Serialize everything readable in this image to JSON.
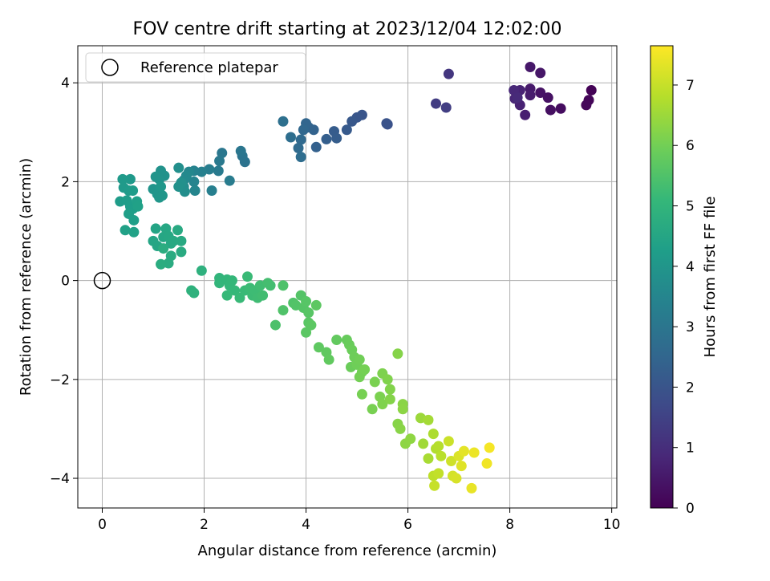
{
  "chart_data": {
    "type": "scatter",
    "title": "FOV centre drift starting at 2023/12/04 12:02:00",
    "xlabel": "Angular distance from reference (arcmin)",
    "ylabel": "Rotation from reference (arcmin)",
    "xlim": [
      -0.48,
      10.1
    ],
    "ylim": [
      -4.6,
      4.75
    ],
    "xticks": [
      0,
      2,
      4,
      6,
      8,
      10
    ],
    "yticks": [
      -4,
      -2,
      0,
      2,
      4
    ],
    "xtick_labels": [
      "0",
      "2",
      "4",
      "6",
      "8",
      "10"
    ],
    "ytick_labels": [
      "−4",
      "−2",
      "0",
      "2",
      "4"
    ],
    "grid": true,
    "legend": {
      "position": "top-left",
      "entries": [
        {
          "label": "Reference platepar",
          "marker": "open-circle"
        }
      ]
    },
    "reference_point": {
      "x": 0,
      "y": 0
    },
    "colorbar": {
      "label": "Hours from first FF file",
      "range": [
        0,
        7.65
      ],
      "ticks": [
        0,
        1,
        2,
        3,
        4,
        5,
        6,
        7
      ],
      "tick_labels": [
        "0",
        "1",
        "2",
        "3",
        "4",
        "5",
        "6",
        "7"
      ],
      "colormap": "viridis",
      "stops": [
        "#440154",
        "#482878",
        "#3e4a89",
        "#31688e",
        "#26828e",
        "#1f9e89",
        "#35b779",
        "#6ece58",
        "#b5de2b",
        "#fde725"
      ]
    },
    "points": [
      {
        "x": 9.6,
        "y": 3.85,
        "h": 0.05
      },
      {
        "x": 9.55,
        "y": 3.65,
        "h": 0.1
      },
      {
        "x": 9.5,
        "y": 3.55,
        "h": 0.15
      },
      {
        "x": 9.0,
        "y": 3.48,
        "h": 0.25
      },
      {
        "x": 8.8,
        "y": 3.45,
        "h": 0.3
      },
      {
        "x": 8.75,
        "y": 3.7,
        "h": 0.35
      },
      {
        "x": 8.6,
        "y": 3.8,
        "h": 0.4
      },
      {
        "x": 8.6,
        "y": 4.2,
        "h": 0.45
      },
      {
        "x": 8.4,
        "y": 4.32,
        "h": 0.5
      },
      {
        "x": 8.4,
        "y": 3.88,
        "h": 0.55
      },
      {
        "x": 8.4,
        "y": 3.75,
        "h": 0.6
      },
      {
        "x": 8.3,
        "y": 3.35,
        "h": 0.65
      },
      {
        "x": 8.2,
        "y": 3.55,
        "h": 0.7
      },
      {
        "x": 8.2,
        "y": 3.85,
        "h": 0.75
      },
      {
        "x": 8.1,
        "y": 3.68,
        "h": 0.8
      },
      {
        "x": 8.08,
        "y": 3.85,
        "h": 0.85
      },
      {
        "x": 8.15,
        "y": 3.7,
        "h": 0.9
      },
      {
        "x": 6.8,
        "y": 4.18,
        "h": 1.2
      },
      {
        "x": 6.55,
        "y": 3.58,
        "h": 1.35
      },
      {
        "x": 6.75,
        "y": 3.5,
        "h": 1.4
      },
      {
        "x": 5.6,
        "y": 3.16,
        "h": 1.9
      },
      {
        "x": 5.58,
        "y": 3.18,
        "h": 1.95
      },
      {
        "x": 5.1,
        "y": 3.35,
        "h": 2.0
      },
      {
        "x": 5.0,
        "y": 3.3,
        "h": 2.05
      },
      {
        "x": 4.9,
        "y": 3.22,
        "h": 2.1
      },
      {
        "x": 4.8,
        "y": 3.05,
        "h": 2.15
      },
      {
        "x": 4.55,
        "y": 3.02,
        "h": 2.2
      },
      {
        "x": 4.6,
        "y": 2.88,
        "h": 2.25
      },
      {
        "x": 4.4,
        "y": 2.86,
        "h": 2.3
      },
      {
        "x": 4.2,
        "y": 2.7,
        "h": 2.35
      },
      {
        "x": 4.15,
        "y": 3.05,
        "h": 2.4
      },
      {
        "x": 4.05,
        "y": 3.1,
        "h": 2.45
      },
      {
        "x": 4.0,
        "y": 3.18,
        "h": 2.5
      },
      {
        "x": 3.95,
        "y": 3.05,
        "h": 2.55
      },
      {
        "x": 3.9,
        "y": 2.85,
        "h": 2.6
      },
      {
        "x": 3.85,
        "y": 2.68,
        "h": 2.65
      },
      {
        "x": 3.9,
        "y": 2.5,
        "h": 2.7
      },
      {
        "x": 3.7,
        "y": 2.9,
        "h": 2.75
      },
      {
        "x": 3.55,
        "y": 3.22,
        "h": 2.8
      },
      {
        "x": 2.8,
        "y": 2.4,
        "h": 2.9
      },
      {
        "x": 2.75,
        "y": 2.52,
        "h": 2.95
      },
      {
        "x": 2.72,
        "y": 2.62,
        "h": 3.0
      },
      {
        "x": 2.35,
        "y": 2.58,
        "h": 3.05
      },
      {
        "x": 2.3,
        "y": 2.42,
        "h": 3.1
      },
      {
        "x": 2.28,
        "y": 2.22,
        "h": 3.15
      },
      {
        "x": 2.5,
        "y": 2.02,
        "h": 3.2
      },
      {
        "x": 2.1,
        "y": 2.25,
        "h": 3.25
      },
      {
        "x": 2.15,
        "y": 1.82,
        "h": 3.3
      },
      {
        "x": 1.95,
        "y": 2.2,
        "h": 3.35
      },
      {
        "x": 1.8,
        "y": 2.22,
        "h": 3.4
      },
      {
        "x": 1.8,
        "y": 2.0,
        "h": 3.45
      },
      {
        "x": 1.82,
        "y": 1.82,
        "h": 3.5
      },
      {
        "x": 1.7,
        "y": 2.2,
        "h": 3.55
      },
      {
        "x": 1.65,
        "y": 2.12,
        "h": 3.6
      },
      {
        "x": 1.6,
        "y": 2.03,
        "h": 3.65
      },
      {
        "x": 1.6,
        "y": 1.9,
        "h": 3.7
      },
      {
        "x": 1.62,
        "y": 1.8,
        "h": 3.75
      },
      {
        "x": 1.5,
        "y": 2.28,
        "h": 3.8
      },
      {
        "x": 1.55,
        "y": 1.98,
        "h": 3.82
      },
      {
        "x": 1.5,
        "y": 1.9,
        "h": 3.85
      },
      {
        "x": 1.22,
        "y": 2.12,
        "h": 3.88
      },
      {
        "x": 1.15,
        "y": 2.22,
        "h": 3.9
      },
      {
        "x": 1.12,
        "y": 2.05,
        "h": 3.92
      },
      {
        "x": 1.05,
        "y": 2.1,
        "h": 3.94
      },
      {
        "x": 1.0,
        "y": 1.85,
        "h": 3.96
      },
      {
        "x": 1.08,
        "y": 1.75,
        "h": 3.98
      },
      {
        "x": 1.12,
        "y": 1.68,
        "h": 4.0
      },
      {
        "x": 1.18,
        "y": 1.72,
        "h": 4.02
      },
      {
        "x": 1.15,
        "y": 1.9,
        "h": 4.04
      },
      {
        "x": 0.55,
        "y": 2.05,
        "h": 4.1
      },
      {
        "x": 0.4,
        "y": 2.05,
        "h": 4.12
      },
      {
        "x": 0.42,
        "y": 1.88,
        "h": 4.14
      },
      {
        "x": 0.52,
        "y": 1.82,
        "h": 4.16
      },
      {
        "x": 0.6,
        "y": 1.82,
        "h": 4.18
      },
      {
        "x": 0.35,
        "y": 1.6,
        "h": 4.2
      },
      {
        "x": 0.48,
        "y": 1.62,
        "h": 4.22
      },
      {
        "x": 0.55,
        "y": 1.5,
        "h": 4.24
      },
      {
        "x": 0.6,
        "y": 1.45,
        "h": 4.26
      },
      {
        "x": 0.52,
        "y": 1.35,
        "h": 4.28
      },
      {
        "x": 0.62,
        "y": 1.22,
        "h": 4.3
      },
      {
        "x": 0.68,
        "y": 1.6,
        "h": 4.32
      },
      {
        "x": 0.7,
        "y": 1.5,
        "h": 4.34
      },
      {
        "x": 0.45,
        "y": 1.02,
        "h": 4.36
      },
      {
        "x": 0.62,
        "y": 0.98,
        "h": 4.38
      },
      {
        "x": 1.05,
        "y": 1.05,
        "h": 4.45
      },
      {
        "x": 1.0,
        "y": 0.8,
        "h": 4.48
      },
      {
        "x": 1.08,
        "y": 0.7,
        "h": 4.5
      },
      {
        "x": 1.2,
        "y": 0.88,
        "h": 4.52
      },
      {
        "x": 1.25,
        "y": 1.05,
        "h": 4.54
      },
      {
        "x": 1.3,
        "y": 0.9,
        "h": 4.56
      },
      {
        "x": 1.35,
        "y": 0.75,
        "h": 4.58
      },
      {
        "x": 1.4,
        "y": 0.8,
        "h": 4.6
      },
      {
        "x": 1.48,
        "y": 1.02,
        "h": 4.62
      },
      {
        "x": 1.55,
        "y": 0.8,
        "h": 4.64
      },
      {
        "x": 1.55,
        "y": 0.58,
        "h": 4.66
      },
      {
        "x": 1.35,
        "y": 0.5,
        "h": 4.68
      },
      {
        "x": 1.3,
        "y": 0.35,
        "h": 4.7
      },
      {
        "x": 1.15,
        "y": 0.33,
        "h": 4.72
      },
      {
        "x": 1.2,
        "y": 0.65,
        "h": 4.74
      },
      {
        "x": 1.95,
        "y": 0.2,
        "h": 4.85
      },
      {
        "x": 1.75,
        "y": -0.2,
        "h": 4.88
      },
      {
        "x": 1.8,
        "y": -0.25,
        "h": 4.9
      },
      {
        "x": 2.3,
        "y": 0.05,
        "h": 5.0
      },
      {
        "x": 2.3,
        "y": -0.05,
        "h": 5.02
      },
      {
        "x": 2.45,
        "y": 0.02,
        "h": 5.04
      },
      {
        "x": 2.5,
        "y": -0.1,
        "h": 5.06
      },
      {
        "x": 2.55,
        "y": 0.0,
        "h": 5.08
      },
      {
        "x": 2.6,
        "y": -0.2,
        "h": 5.1
      },
      {
        "x": 2.45,
        "y": -0.3,
        "h": 5.12
      },
      {
        "x": 2.7,
        "y": -0.35,
        "h": 5.14
      },
      {
        "x": 2.8,
        "y": -0.2,
        "h": 5.16
      },
      {
        "x": 2.85,
        "y": 0.08,
        "h": 5.18
      },
      {
        "x": 2.9,
        "y": -0.15,
        "h": 5.2
      },
      {
        "x": 2.95,
        "y": -0.3,
        "h": 5.22
      },
      {
        "x": 3.0,
        "y": -0.2,
        "h": 5.24
      },
      {
        "x": 3.05,
        "y": -0.35,
        "h": 5.26
      },
      {
        "x": 3.1,
        "y": -0.1,
        "h": 5.28
      },
      {
        "x": 3.15,
        "y": -0.3,
        "h": 5.3
      },
      {
        "x": 3.3,
        "y": -0.1,
        "h": 5.32
      },
      {
        "x": 3.25,
        "y": -0.05,
        "h": 5.34
      },
      {
        "x": 3.4,
        "y": -0.9,
        "h": 5.45
      },
      {
        "x": 3.55,
        "y": -0.1,
        "h": 5.48
      },
      {
        "x": 3.55,
        "y": -0.6,
        "h": 5.5
      },
      {
        "x": 3.75,
        "y": -0.45,
        "h": 5.52
      },
      {
        "x": 3.8,
        "y": -0.5,
        "h": 5.54
      },
      {
        "x": 3.9,
        "y": -0.3,
        "h": 5.56
      },
      {
        "x": 3.95,
        "y": -0.55,
        "h": 5.58
      },
      {
        "x": 4.0,
        "y": -0.42,
        "h": 5.6
      },
      {
        "x": 4.05,
        "y": -0.65,
        "h": 5.62
      },
      {
        "x": 4.05,
        "y": -0.85,
        "h": 5.64
      },
      {
        "x": 4.0,
        "y": -1.05,
        "h": 5.66
      },
      {
        "x": 4.1,
        "y": -0.9,
        "h": 5.68
      },
      {
        "x": 4.2,
        "y": -0.5,
        "h": 5.7
      },
      {
        "x": 4.25,
        "y": -1.35,
        "h": 5.72
      },
      {
        "x": 4.4,
        "y": -1.45,
        "h": 5.74
      },
      {
        "x": 4.45,
        "y": -1.6,
        "h": 5.76
      },
      {
        "x": 4.6,
        "y": -1.2,
        "h": 5.78
      },
      {
        "x": 4.8,
        "y": -1.2,
        "h": 5.85
      },
      {
        "x": 4.85,
        "y": -1.3,
        "h": 5.87
      },
      {
        "x": 4.88,
        "y": -1.75,
        "h": 5.89
      },
      {
        "x": 4.9,
        "y": -1.4,
        "h": 5.91
      },
      {
        "x": 4.95,
        "y": -1.55,
        "h": 5.93
      },
      {
        "x": 5.0,
        "y": -1.7,
        "h": 5.95
      },
      {
        "x": 5.05,
        "y": -1.6,
        "h": 5.97
      },
      {
        "x": 5.1,
        "y": -1.85,
        "h": 5.99
      },
      {
        "x": 5.05,
        "y": -1.95,
        "h": 6.01
      },
      {
        "x": 5.15,
        "y": -1.8,
        "h": 6.03
      },
      {
        "x": 5.1,
        "y": -2.3,
        "h": 6.05
      },
      {
        "x": 5.3,
        "y": -2.6,
        "h": 6.07
      },
      {
        "x": 5.35,
        "y": -2.05,
        "h": 6.09
      },
      {
        "x": 5.45,
        "y": -2.35,
        "h": 6.11
      },
      {
        "x": 5.5,
        "y": -1.88,
        "h": 6.13
      },
      {
        "x": 5.5,
        "y": -2.5,
        "h": 6.15
      },
      {
        "x": 5.6,
        "y": -2.0,
        "h": 6.17
      },
      {
        "x": 5.65,
        "y": -2.2,
        "h": 6.19
      },
      {
        "x": 5.65,
        "y": -2.4,
        "h": 6.21
      },
      {
        "x": 5.8,
        "y": -1.48,
        "h": 6.23
      },
      {
        "x": 5.8,
        "y": -2.9,
        "h": 6.25
      },
      {
        "x": 5.85,
        "y": -3.0,
        "h": 6.27
      },
      {
        "x": 5.9,
        "y": -2.5,
        "h": 6.29
      },
      {
        "x": 5.9,
        "y": -2.6,
        "h": 6.31
      },
      {
        "x": 5.95,
        "y": -3.3,
        "h": 6.33
      },
      {
        "x": 6.05,
        "y": -3.2,
        "h": 6.35
      },
      {
        "x": 6.25,
        "y": -2.78,
        "h": 6.5
      },
      {
        "x": 6.3,
        "y": -3.3,
        "h": 6.55
      },
      {
        "x": 6.4,
        "y": -2.82,
        "h": 6.6
      },
      {
        "x": 6.4,
        "y": -3.6,
        "h": 6.65
      },
      {
        "x": 6.5,
        "y": -3.1,
        "h": 6.7
      },
      {
        "x": 6.55,
        "y": -3.4,
        "h": 6.75
      },
      {
        "x": 6.6,
        "y": -3.35,
        "h": 6.8
      },
      {
        "x": 6.65,
        "y": -3.55,
        "h": 6.85
      },
      {
        "x": 6.5,
        "y": -3.95,
        "h": 6.9
      },
      {
        "x": 6.6,
        "y": -3.9,
        "h": 6.95
      },
      {
        "x": 6.52,
        "y": -4.15,
        "h": 7.0
      },
      {
        "x": 6.8,
        "y": -3.25,
        "h": 7.05
      },
      {
        "x": 6.85,
        "y": -3.65,
        "h": 7.1
      },
      {
        "x": 6.88,
        "y": -3.95,
        "h": 7.15
      },
      {
        "x": 6.95,
        "y": -4.0,
        "h": 7.2
      },
      {
        "x": 7.0,
        "y": -3.55,
        "h": 7.25
      },
      {
        "x": 7.05,
        "y": -3.75,
        "h": 7.3
      },
      {
        "x": 7.1,
        "y": -3.45,
        "h": 7.35
      },
      {
        "x": 7.25,
        "y": -4.2,
        "h": 7.4
      },
      {
        "x": 7.3,
        "y": -3.48,
        "h": 7.45
      },
      {
        "x": 7.55,
        "y": -3.7,
        "h": 7.5
      },
      {
        "x": 7.6,
        "y": -3.38,
        "h": 7.55
      }
    ]
  }
}
